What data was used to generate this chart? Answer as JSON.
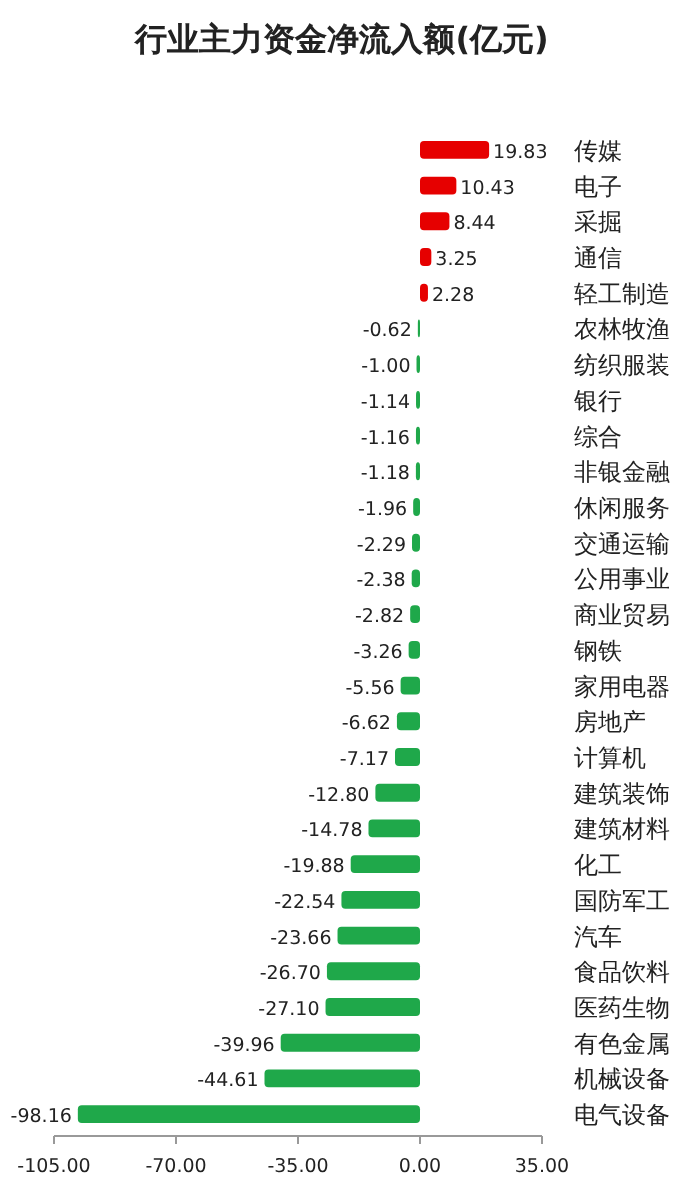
{
  "chart_data": {
    "type": "bar",
    "orientation": "horizontal",
    "title": "行业主力资金净流入额(亿元)",
    "categories": [
      "传媒",
      "电子",
      "采掘",
      "通信",
      "轻工制造",
      "农林牧渔",
      "纺织服装",
      "银行",
      "综合",
      "非银金融",
      "休闲服务",
      "交通运输",
      "公用事业",
      "商业贸易",
      "钢铁",
      "家用电器",
      "房地产",
      "计算机",
      "建筑装饰",
      "建筑材料",
      "化工",
      "国防军工",
      "汽车",
      "食品饮料",
      "医药生物",
      "有色金属",
      "机械设备",
      "电气设备"
    ],
    "values": [
      19.83,
      10.43,
      8.44,
      3.25,
      2.28,
      -0.62,
      -1.0,
      -1.14,
      -1.16,
      -1.18,
      -1.96,
      -2.29,
      -2.38,
      -2.82,
      -3.26,
      -5.56,
      -6.62,
      -7.17,
      -12.8,
      -14.78,
      -19.88,
      -22.54,
      -23.66,
      -26.7,
      -27.1,
      -39.96,
      -44.61,
      -98.16
    ],
    "value_labels": [
      "19.83",
      "10.43",
      "8.44",
      "3.25",
      "2.28",
      "-0.62",
      "-1.00",
      "-1.14",
      "-1.16",
      "-1.18",
      "-1.96",
      "-2.29",
      "-2.38",
      "-2.82",
      "-3.26",
      "-5.56",
      "-6.62",
      "-7.17",
      "-12.80",
      "-14.78",
      "-19.88",
      "-22.54",
      "-23.66",
      "-26.70",
      "-27.10",
      "-39.96",
      "-44.61",
      "-98.16"
    ],
    "colors": [
      "#e60000",
      "#e60000",
      "#e60000",
      "#e60000",
      "#e60000",
      "#1fa84a",
      "#1fa84a",
      "#1fa84a",
      "#1fa84a",
      "#1fa84a",
      "#1fa84a",
      "#1fa84a",
      "#1fa84a",
      "#1fa84a",
      "#1fa84a",
      "#1fa84a",
      "#1fa84a",
      "#1fa84a",
      "#1fa84a",
      "#1fa84a",
      "#1fa84a",
      "#1fa84a",
      "#1fa84a",
      "#1fa84a",
      "#1fa84a",
      "#1fa84a",
      "#1fa84a",
      "#1fa84a"
    ],
    "xlim": [
      -105,
      35
    ],
    "xticks": [
      {
        "value": -105,
        "label": "-105.00"
      },
      {
        "value": -70,
        "label": "-70.00"
      },
      {
        "value": -35,
        "label": "-35.00"
      },
      {
        "value": 0,
        "label": "0.00"
      },
      {
        "value": 35,
        "label": "35.00"
      }
    ],
    "grid": false
  }
}
